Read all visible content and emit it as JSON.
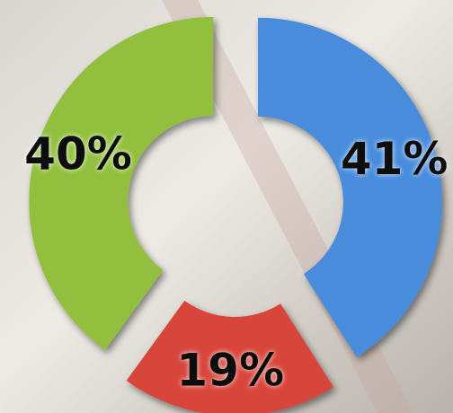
{
  "chart_data": {
    "type": "donut",
    "values": [
      41,
      19,
      40
    ],
    "value_labels": [
      "41%",
      "19%",
      "40%"
    ],
    "colors": [
      "#4a8cdc",
      "#d8443a",
      "#92bf3e"
    ]
  }
}
